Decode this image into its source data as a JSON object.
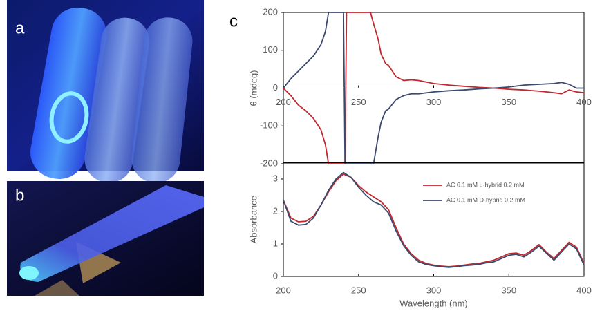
{
  "figure_labels": [
    "a",
    "b",
    "c"
  ],
  "chart_data": [
    {
      "type": "line",
      "ylabel": "θ (mdeg)",
      "x": [
        200,
        205,
        210,
        215,
        220,
        225,
        228,
        230,
        235,
        240,
        241,
        242,
        245,
        250,
        255,
        258,
        260,
        263,
        265,
        268,
        270,
        275,
        280,
        285,
        290,
        300,
        310,
        320,
        330,
        340,
        350,
        360,
        370,
        380,
        385,
        390,
        395,
        400
      ],
      "series": [
        {
          "name": "AC 0.1 mM L-hybrid 0.2 mM",
          "color": "#c0282d",
          "values": [
            0,
            -20,
            -45,
            -60,
            -80,
            -110,
            -150,
            -200,
            -200,
            -200,
            -200,
            200,
            200,
            200,
            200,
            200,
            170,
            130,
            90,
            65,
            60,
            30,
            20,
            22,
            20,
            12,
            8,
            5,
            2,
            0,
            -3,
            -5,
            -8,
            -12,
            -15,
            -5,
            -10,
            -12
          ]
        },
        {
          "name": "AC 0.1 mM D-hybrid 0.2 mM",
          "color": "#3a4a6e",
          "values": [
            0,
            25,
            45,
            65,
            85,
            115,
            150,
            200,
            200,
            200,
            -200,
            -200,
            -200,
            -200,
            -200,
            -200,
            -200,
            -130,
            -90,
            -60,
            -55,
            -30,
            -20,
            -15,
            -15,
            -10,
            -7,
            -5,
            -2,
            0,
            3,
            8,
            10,
            12,
            15,
            10,
            0,
            0
          ]
        }
      ],
      "xlim": [
        200,
        400
      ],
      "xticks": [
        200,
        250,
        300,
        350,
        400
      ],
      "ylim": [
        -200,
        200
      ],
      "yticks": [
        -200,
        -100,
        0,
        100,
        200
      ]
    },
    {
      "type": "line",
      "xlabel": "Wavelength (nm)",
      "ylabel": "Absorbance",
      "x": [
        200,
        205,
        210,
        215,
        220,
        225,
        230,
        235,
        240,
        245,
        250,
        255,
        260,
        265,
        270,
        275,
        280,
        285,
        290,
        295,
        300,
        305,
        310,
        315,
        320,
        325,
        330,
        335,
        340,
        345,
        350,
        355,
        360,
        365,
        370,
        375,
        380,
        385,
        390,
        395,
        400
      ],
      "series": [
        {
          "name": "AC 0.1 mM L-hybrid 0.2 mM",
          "color": "#c0282d",
          "values": [
            2.35,
            1.8,
            1.68,
            1.7,
            1.85,
            2.2,
            2.6,
            2.95,
            3.15,
            3.05,
            2.8,
            2.6,
            2.45,
            2.3,
            2.05,
            1.5,
            1.0,
            0.7,
            0.5,
            0.4,
            0.35,
            0.32,
            0.3,
            0.32,
            0.35,
            0.38,
            0.4,
            0.45,
            0.5,
            0.6,
            0.7,
            0.72,
            0.65,
            0.8,
            0.98,
            0.75,
            0.55,
            0.8,
            1.05,
            0.9,
            0.4
          ]
        },
        {
          "name": "AC 0.1 mM D-hybrid 0.2 mM",
          "color": "#3a4a6e",
          "values": [
            2.35,
            1.7,
            1.58,
            1.6,
            1.8,
            2.2,
            2.65,
            3.0,
            3.2,
            3.05,
            2.75,
            2.5,
            2.3,
            2.2,
            1.95,
            1.4,
            0.95,
            0.65,
            0.45,
            0.37,
            0.33,
            0.3,
            0.28,
            0.3,
            0.33,
            0.35,
            0.37,
            0.42,
            0.45,
            0.55,
            0.65,
            0.68,
            0.6,
            0.75,
            0.93,
            0.72,
            0.5,
            0.75,
            1.0,
            0.85,
            0.35
          ]
        }
      ],
      "xlim": [
        200,
        400
      ],
      "xticks": [
        200,
        250,
        300,
        350,
        400
      ],
      "ylim": [
        0,
        3.5
      ],
      "yticks": [
        0,
        1,
        2,
        3
      ],
      "legend": "upper right"
    }
  ]
}
